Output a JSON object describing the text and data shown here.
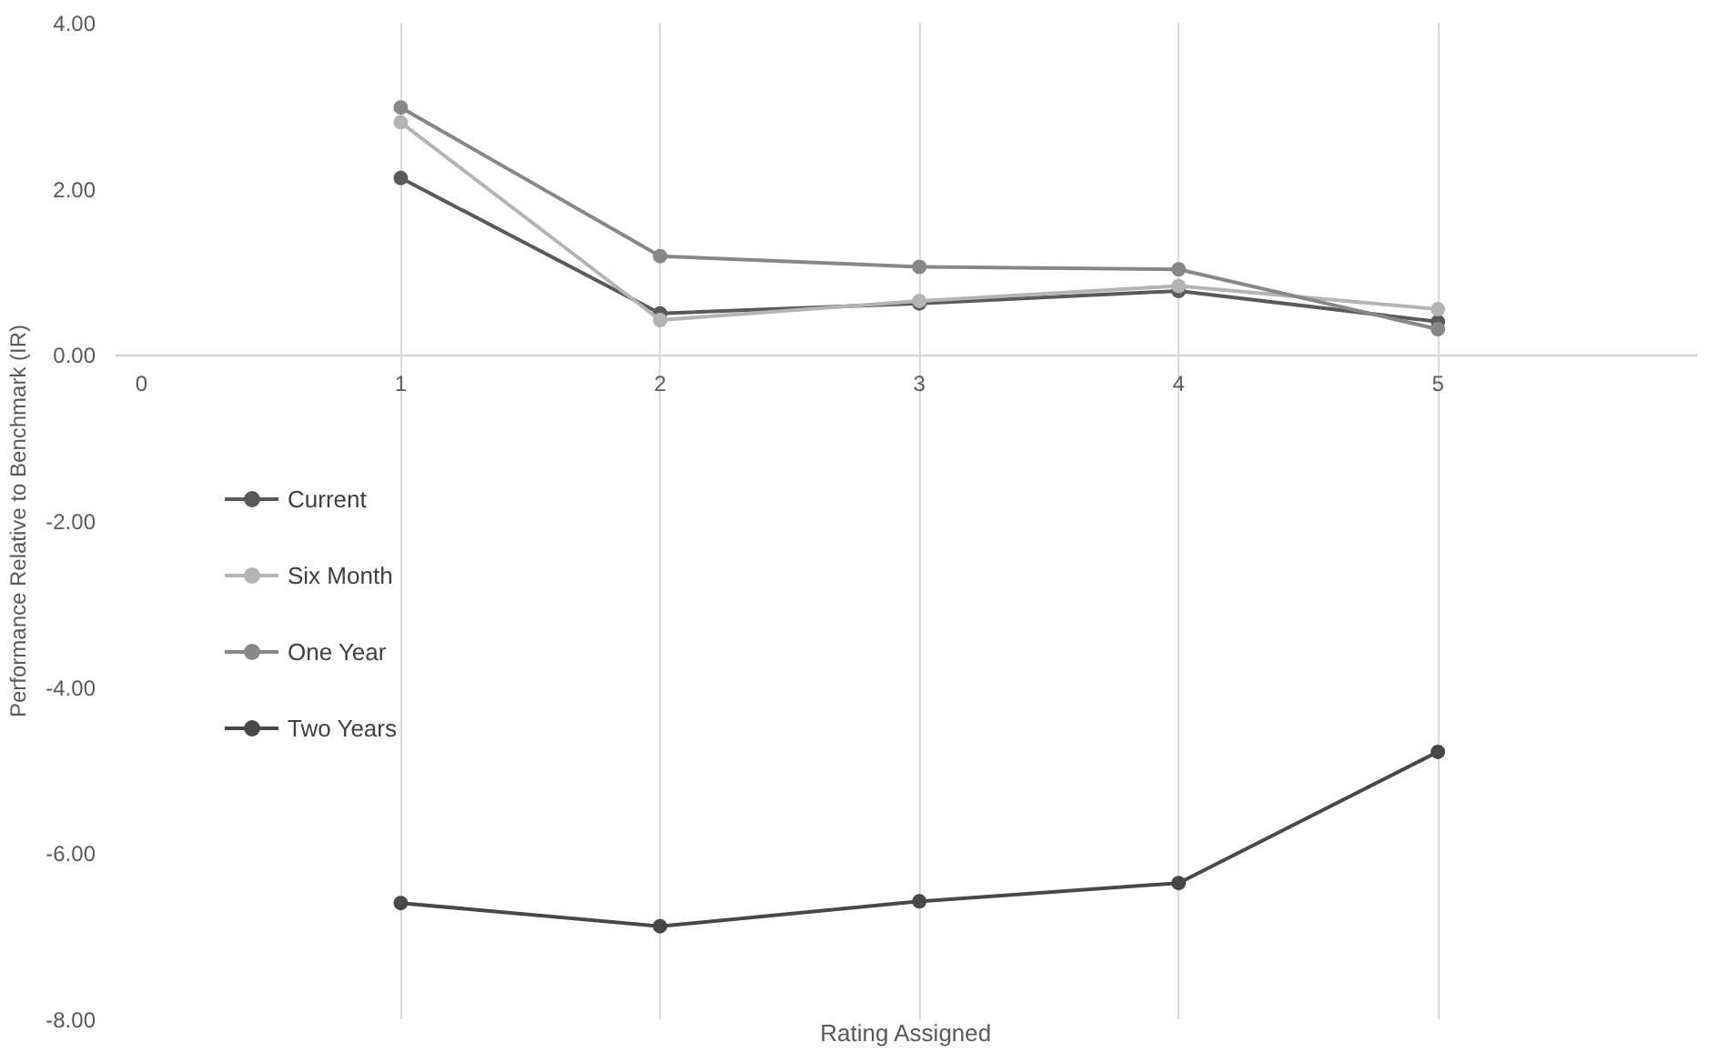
{
  "chart_data": {
    "type": "line",
    "xlabel": "Rating Assigned",
    "ylabel": "Performance Relative to Benchmark (IR)",
    "x": [
      1,
      2,
      3,
      4,
      5
    ],
    "series": [
      {
        "name": "Current",
        "color": "#5a5a5a",
        "values": [
          2.13,
          0.5,
          0.62,
          0.77,
          0.4
        ]
      },
      {
        "name": "Six Month",
        "color": "#b4b4b4",
        "values": [
          2.8,
          0.42,
          0.65,
          0.83,
          0.55
        ]
      },
      {
        "name": "One Year",
        "color": "#878787",
        "values": [
          2.98,
          1.19,
          1.06,
          1.03,
          0.31
        ]
      },
      {
        "name": "Two Years",
        "color": "#484848",
        "values": [
          -6.6,
          -6.88,
          -6.58,
          -6.36,
          -4.78
        ]
      }
    ],
    "xlim": [
      -0.1,
      6
    ],
    "xticks": [
      0,
      1,
      2,
      3,
      4,
      5
    ],
    "ylim": [
      -8,
      4
    ],
    "yticks": [
      {
        "value": -8,
        "label": "-8.00"
      },
      {
        "value": -6,
        "label": "-6.00"
      },
      {
        "value": -4,
        "label": "-4.00"
      },
      {
        "value": -2,
        "label": "-2.00"
      },
      {
        "value": 0,
        "label": "0.00"
      },
      {
        "value": 2,
        "label": "2.00"
      },
      {
        "value": 4,
        "label": "4.00"
      }
    ],
    "grid": "x",
    "legend": "left",
    "marker": "circle",
    "line_style": "solid"
  }
}
